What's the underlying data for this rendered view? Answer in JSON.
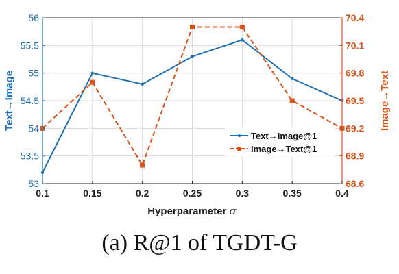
{
  "chart_data": {
    "type": "line",
    "x": [
      0.1,
      0.15,
      0.2,
      0.25,
      0.3,
      0.35,
      0.4
    ],
    "x_ticks": [
      "0.1",
      "0.15",
      "0.2",
      "0.25",
      "0.3",
      "0.35",
      "0.4"
    ],
    "xlim": [
      0.1,
      0.4
    ],
    "xlabel_main": "Hyperparameter ",
    "xlabel_symbol": "σ",
    "ylabel_left": "Text→Image",
    "ylabel_right": "Image→Text",
    "ylim_left": [
      53,
      56
    ],
    "ylim_right": [
      68.6,
      70.4
    ],
    "y_ticks_left": [
      "53",
      "53.5",
      "54",
      "54.5",
      "55",
      "55.5",
      "56"
    ],
    "y_ticks_right": [
      "68.6",
      "68.9",
      "69.2",
      "69.5",
      "69.8",
      "70.1",
      "70.4"
    ],
    "legend_position": "center-right",
    "series": [
      {
        "name": "Text→Image@1",
        "axis": "left",
        "color": "#1f6fb4",
        "style": "solid",
        "marker": "point",
        "values": [
          53.2,
          55.0,
          54.8,
          55.3,
          55.6,
          54.9,
          54.5
        ]
      },
      {
        "name": "Image→Text@1",
        "axis": "right",
        "color": "#d95319",
        "style": "dashed",
        "marker": "square",
        "values": [
          69.2,
          69.7,
          68.8,
          70.3,
          70.3,
          69.5,
          69.2
        ]
      }
    ]
  },
  "caption": "(a) R@1 of TGDT-G"
}
